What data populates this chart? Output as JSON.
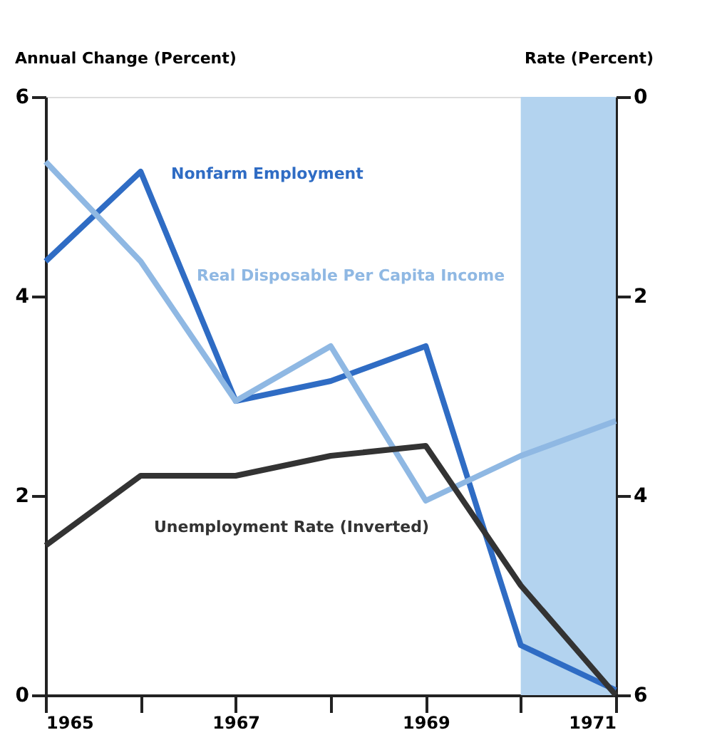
{
  "chart_data": {
    "type": "line",
    "ylabel": "Annual Change (Percent)",
    "y2label": "Rate (Percent)",
    "x": [
      1965,
      1966,
      1967,
      1968,
      1969,
      1970,
      1971
    ],
    "xlim": [
      1965,
      1971
    ],
    "xticks": [
      1965,
      {
        "value": 1966,
        "label": null
      },
      1967,
      {
        "value": 1968,
        "label": null
      },
      1969,
      {
        "value": 1970,
        "label": null
      },
      1971
    ],
    "ylim": [
      0,
      6
    ],
    "yticks": [
      0,
      2,
      4,
      6
    ],
    "y2lim": [
      6,
      0
    ],
    "y2ticks": [
      0,
      2,
      4,
      6
    ],
    "grid": false,
    "legend": false,
    "marker": "none",
    "line_style": "solid",
    "bands": [
      {
        "axis": "x",
        "from": 1970,
        "to": 1971,
        "color": "#b3d3ef"
      }
    ],
    "series": [
      {
        "name": "Nonfarm Employment",
        "color": "#2f6cc4",
        "values": [
          4.35,
          5.25,
          2.95,
          3.15,
          3.5,
          0.5,
          0.05
        ]
      },
      {
        "name": "Real Disposable Per Capita Income",
        "color": "#8fb8e3",
        "values": [
          5.35,
          4.35,
          2.95,
          3.5,
          1.95,
          2.4,
          2.75
        ]
      },
      {
        "name": "Unemployment Rate (Inverted)",
        "color": "#333333",
        "axis": "y2",
        "values": [
          4.5,
          3.8,
          3.8,
          3.6,
          3.5,
          4.9,
          6.0
        ]
      }
    ]
  }
}
